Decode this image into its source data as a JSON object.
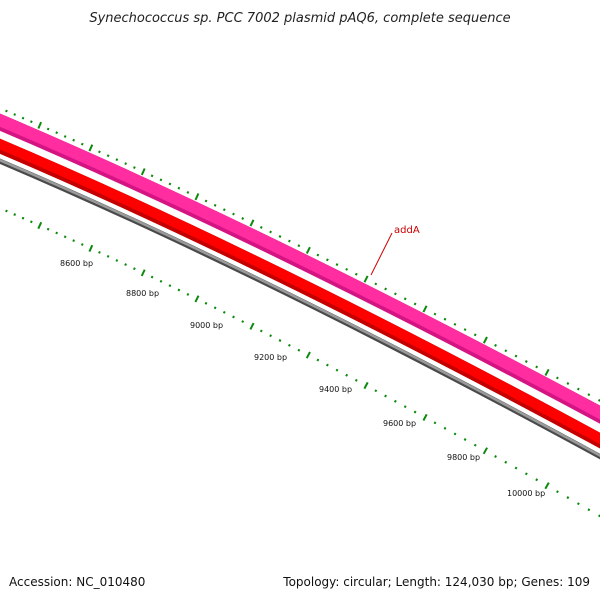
{
  "title": "Synechococcus sp. PCC 7002 plasmid pAQ6, complete sequence",
  "footer": {
    "accession": "Accession: NC_010480",
    "summary": "Topology: circular; Length: 124,030 bp; Genes: 109"
  },
  "colors": {
    "outer_track": "#ff2da0",
    "outer_track_dark": "#d41483",
    "inner_track": "#ff0000",
    "inner_track_dark": "#c40000",
    "backbone": "#7a7a7a",
    "backbone_dark": "#4a4a4a",
    "tick": "#0c8a0c",
    "gene_label": "#cc0000"
  },
  "gene_labels": [
    {
      "text": "addA"
    }
  ],
  "scale_labels": [
    "8600 bp",
    "8800 bp",
    "9000 bp",
    "9200 bp",
    "9400 bp",
    "9600 bp",
    "9800 bp",
    "10000 bp"
  ]
}
